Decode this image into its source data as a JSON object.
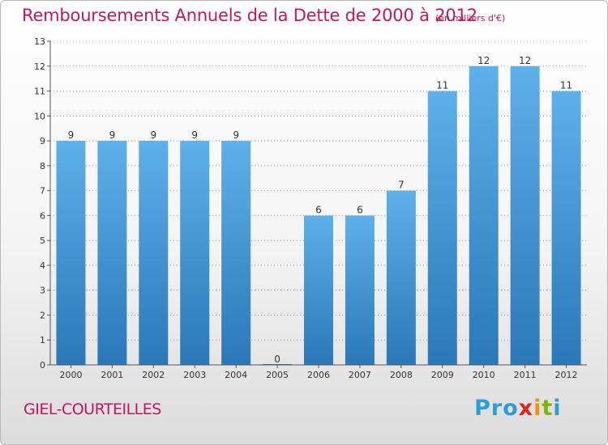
{
  "page": {
    "title": "Remboursements Annuels de la Dette de 2000 à 2012",
    "subtitle": "(en milliers d'€)",
    "commune": "GIEL-COURTEILLES",
    "logo": {
      "parts": [
        "Pro",
        "x",
        "i",
        "t",
        "i"
      ],
      "text": "Proxiti"
    }
  },
  "colors": {
    "accent": "#c2185b",
    "bar_top": "#5eb0ea",
    "bar_bottom": "#2a78b8",
    "axis": "#555555",
    "grid": "#666666"
  },
  "chart_data": {
    "type": "bar",
    "title": "Remboursements Annuels de la Dette de 2000 à 2012",
    "subtitle": "(en milliers d'€)",
    "xlabel": "",
    "ylabel": "",
    "categories": [
      "2000",
      "2001",
      "2002",
      "2003",
      "2004",
      "2005",
      "2006",
      "2007",
      "2008",
      "2009",
      "2010",
      "2011",
      "2012"
    ],
    "values": [
      9,
      9,
      9,
      9,
      9,
      0,
      6,
      6,
      7,
      11,
      12,
      12,
      11
    ],
    "data_labels": [
      "9",
      "9",
      "9",
      "9",
      "9",
      "0",
      "6",
      "6",
      "7",
      "11",
      "12",
      "12",
      "11"
    ],
    "ylim": [
      0,
      13
    ],
    "yticks": [
      0,
      1,
      2,
      3,
      4,
      5,
      6,
      7,
      8,
      9,
      10,
      11,
      12,
      13
    ],
    "grid": true,
    "legend": "none"
  }
}
